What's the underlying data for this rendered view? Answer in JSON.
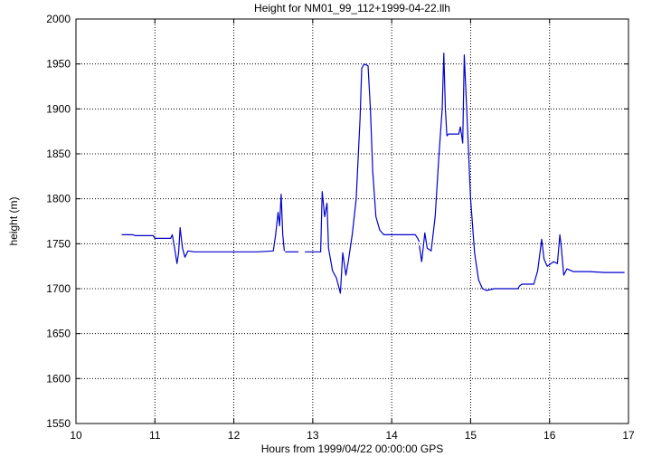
{
  "chart_data": {
    "type": "line",
    "title": "Height for NM01_99_112+1999-04-22.llh",
    "xlabel": "Hours from 1999/04/22 00:00:00 GPS",
    "ylabel": "height (m)",
    "xlim": [
      10,
      17
    ],
    "ylim": [
      1550,
      2000
    ],
    "xticks": [
      "10",
      "11",
      "12",
      "13",
      "14",
      "15",
      "16",
      "17"
    ],
    "yticks": [
      "1550",
      "1600",
      "1650",
      "1700",
      "1750",
      "1800",
      "1850",
      "1900",
      "1950",
      "2000"
    ],
    "grid": true,
    "grid_style": "dotted",
    "line_color": "#0000cc",
    "series": [
      {
        "segments": [
          [
            [
              10.58,
              1760
            ],
            [
              10.72,
              1760
            ],
            [
              10.75,
              1759
            ],
            [
              10.98,
              1759
            ],
            [
              11.0,
              1756
            ],
            [
              11.2,
              1756
            ],
            [
              11.22,
              1760
            ],
            [
              11.25,
              1745
            ],
            [
              11.28,
              1728
            ],
            [
              11.3,
              1740
            ],
            [
              11.32,
              1768
            ],
            [
              11.35,
              1745
            ],
            [
              11.38,
              1735
            ],
            [
              11.42,
              1742
            ],
            [
              11.5,
              1741
            ],
            [
              11.6,
              1741
            ],
            [
              12.0,
              1741
            ],
            [
              12.3,
              1741
            ],
            [
              12.5,
              1742
            ],
            [
              12.53,
              1760
            ],
            [
              12.56,
              1785
            ],
            [
              12.58,
              1770
            ],
            [
              12.6,
              1805
            ],
            [
              12.62,
              1760
            ],
            [
              12.64,
              1742
            ]
          ],
          [
            [
              12.65,
              1741
            ],
            [
              12.82,
              1741
            ]
          ],
          [
            [
              12.9,
              1741
            ],
            [
              13.1,
              1741
            ],
            [
              13.12,
              1808
            ],
            [
              13.15,
              1780
            ],
            [
              13.18,
              1795
            ],
            [
              13.2,
              1745
            ],
            [
              13.25,
              1720
            ],
            [
              13.3,
              1712
            ],
            [
              13.35,
              1695
            ],
            [
              13.38,
              1740
            ],
            [
              13.42,
              1715
            ],
            [
              13.45,
              1730
            ],
            [
              13.5,
              1760
            ],
            [
              13.55,
              1800
            ],
            [
              13.6,
              1890
            ],
            [
              13.62,
              1945
            ],
            [
              13.65,
              1950
            ],
            [
              13.7,
              1948
            ],
            [
              13.73,
              1900
            ],
            [
              13.76,
              1830
            ],
            [
              13.8,
              1780
            ],
            [
              13.85,
              1765
            ],
            [
              13.9,
              1760
            ],
            [
              14.0,
              1760
            ],
            [
              14.1,
              1760
            ],
            [
              14.3,
              1760
            ],
            [
              14.33,
              1756
            ],
            [
              14.35,
              1752
            ]
          ],
          [
            [
              14.35,
              1748
            ],
            [
              14.38,
              1730
            ],
            [
              14.42,
              1762
            ],
            [
              14.45,
              1745
            ],
            [
              14.5,
              1742
            ],
            [
              14.55,
              1780
            ],
            [
              14.6,
              1850
            ],
            [
              14.64,
              1900
            ],
            [
              14.66,
              1962
            ],
            [
              14.68,
              1900
            ],
            [
              14.7,
              1870
            ],
            [
              14.72,
              1872
            ],
            [
              14.75,
              1872
            ],
            [
              14.85,
              1872
            ],
            [
              14.87,
              1880
            ],
            [
              14.9,
              1862
            ],
            [
              14.92,
              1960
            ],
            [
              14.95,
              1900
            ],
            [
              14.97,
              1860
            ],
            [
              15.0,
              1800
            ],
            [
              15.05,
              1740
            ],
            [
              15.1,
              1710
            ],
            [
              15.15,
              1700
            ],
            [
              15.2,
              1698
            ],
            [
              15.3,
              1700
            ],
            [
              15.5,
              1700
            ],
            [
              15.6,
              1700
            ],
            [
              15.62,
              1703
            ],
            [
              15.65,
              1705
            ],
            [
              15.8,
              1705
            ],
            [
              15.85,
              1720
            ],
            [
              15.9,
              1755
            ],
            [
              15.93,
              1733
            ],
            [
              15.97,
              1725
            ],
            [
              16.05,
              1730
            ],
            [
              16.1,
              1728
            ],
            [
              16.13,
              1760
            ],
            [
              16.15,
              1745
            ],
            [
              16.18,
              1715
            ],
            [
              16.22,
              1722
            ],
            [
              16.3,
              1719
            ],
            [
              16.5,
              1719
            ],
            [
              16.7,
              1718
            ],
            [
              16.95,
              1718
            ]
          ]
        ]
      }
    ]
  }
}
